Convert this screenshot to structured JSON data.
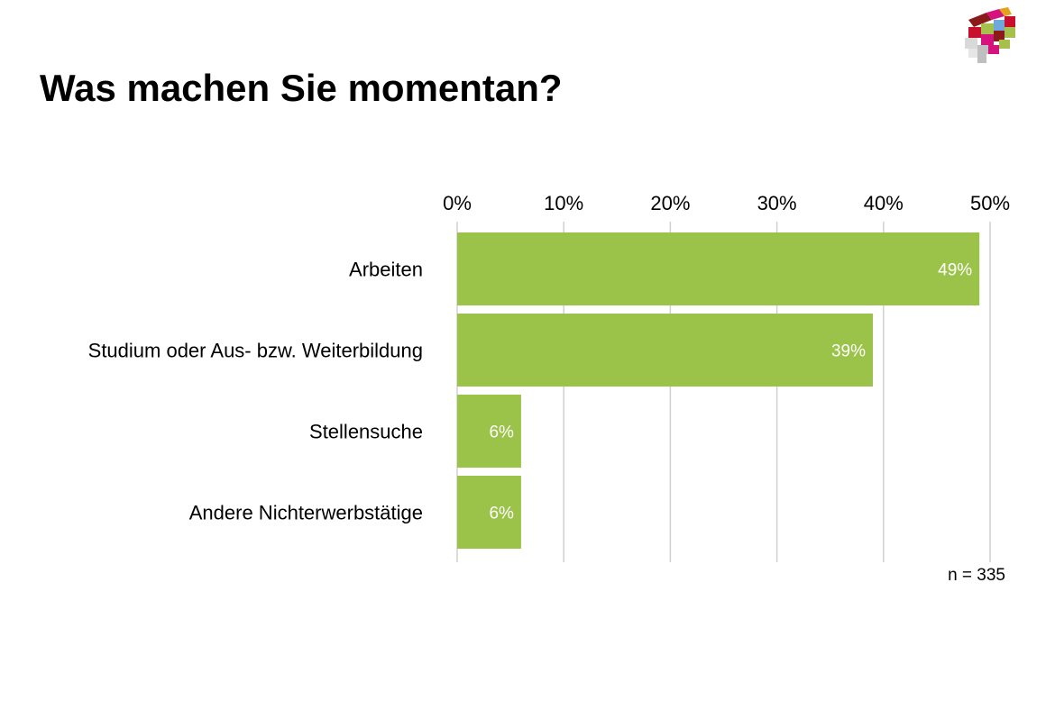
{
  "title": "Was machen Sie momentan?",
  "logo": {
    "icon": "colored-blocks-logo-icon",
    "colors": [
      "#c8102e",
      "#e4a11b",
      "#a6c14b",
      "#d6127e",
      "#6fa8dc",
      "#8b1a1a",
      "#bfbfbf"
    ]
  },
  "colors": {
    "bar": "#9bc34a",
    "grid": "#d0d0d0",
    "label_inside": "#ffffff"
  },
  "chart_data": {
    "type": "bar",
    "orientation": "horizontal",
    "title": "Was machen Sie momentan?",
    "categories": [
      "Arbeiten",
      "Studium oder Aus- bzw. Weiterbildung",
      "Stellensuche",
      "Andere Nichterwerbstätige"
    ],
    "values": [
      49,
      39,
      6,
      6
    ],
    "data_labels": [
      "49%",
      "39%",
      "6%",
      "6%"
    ],
    "xlim": [
      0,
      50
    ],
    "x_ticks": [
      "0%",
      "10%",
      "20%",
      "30%",
      "40%",
      "50%"
    ],
    "x_axis_position": "top",
    "grid": true,
    "legend": "none",
    "note": "n = 335"
  }
}
